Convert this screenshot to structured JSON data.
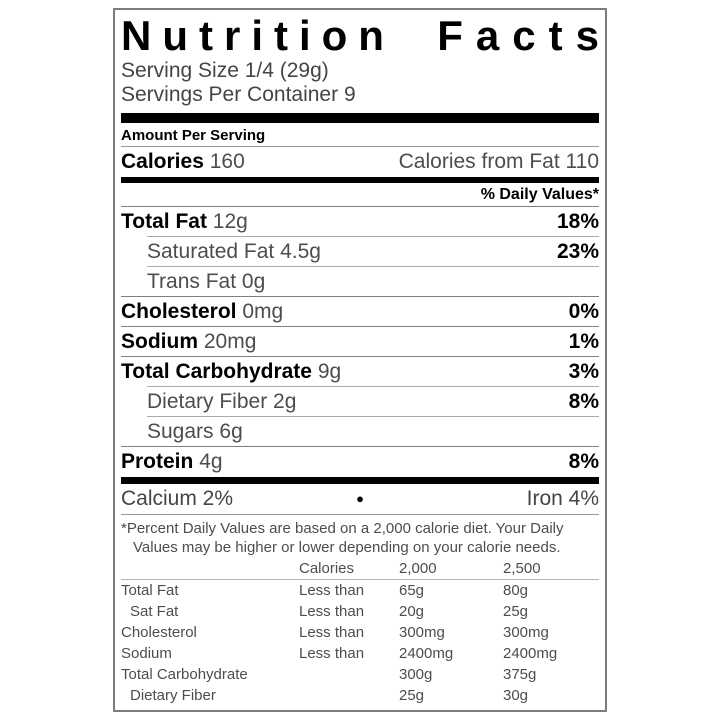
{
  "colors": {
    "text_black": "#000000",
    "text_gray": "#4d4d4d",
    "border_gray": "#7d7d7d",
    "bar_black": "#000000"
  },
  "label": {
    "title_words": {
      "first": "Nutrition",
      "second": "Facts"
    },
    "serving_size": "Serving Size 1/4 (29g)",
    "servings_per_container": "Servings Per Container 9",
    "amount_per_serving": "Amount Per Serving",
    "calories": {
      "label": "Calories",
      "value": "160",
      "from_fat": "Calories from Fat 110"
    },
    "daily_values_header": "% Daily Values*",
    "nutrients": [
      {
        "name": "Total Fat",
        "amount": "12g",
        "dv": "18%"
      },
      {
        "name": "Saturated Fat",
        "amount": "4.5g",
        "dv": "23%"
      },
      {
        "name": "Trans Fat",
        "amount": "0g",
        "dv": ""
      },
      {
        "name": "Cholesterol",
        "amount": "0mg",
        "dv": "0%"
      },
      {
        "name": "Sodium",
        "amount": "20mg",
        "dv": "1%"
      },
      {
        "name": "Total Carbohydrate",
        "amount": "9g",
        "dv": "3%"
      },
      {
        "name": "Dietary Fiber",
        "amount": "2g",
        "dv": "8%"
      },
      {
        "name": "Sugars",
        "amount": "6g",
        "dv": ""
      },
      {
        "name": "Protein",
        "amount": "4g",
        "dv": "8%"
      }
    ],
    "minerals": {
      "calcium": "Calcium 2%",
      "bullet": "●",
      "iron": "Iron 4%"
    },
    "footnote": "*Percent Daily Values are based on a 2,000 calorie diet. Your Daily Values may be higher or lower depending on your calorie needs.",
    "dv_table": {
      "header": {
        "col2": "Calories",
        "col3": "2,000",
        "col4": "2,500"
      },
      "rows": [
        {
          "name": "Total Fat",
          "qualifier": "Less than",
          "v2000": "65g",
          "v2500": "80g"
        },
        {
          "name": "Sat Fat",
          "qualifier": "Less than",
          "v2000": "20g",
          "v2500": "25g"
        },
        {
          "name": "Cholesterol",
          "qualifier": "Less than",
          "v2000": "300mg",
          "v2500": "300mg"
        },
        {
          "name": "Sodium",
          "qualifier": "Less than",
          "v2000": "2400mg",
          "v2500": "2400mg"
        },
        {
          "name": "Total Carbohydrate",
          "qualifier": "",
          "v2000": "300g",
          "v2500": "375g"
        },
        {
          "name": "Dietary Fiber",
          "qualifier": "",
          "v2000": "25g",
          "v2500": "30g"
        }
      ]
    }
  }
}
